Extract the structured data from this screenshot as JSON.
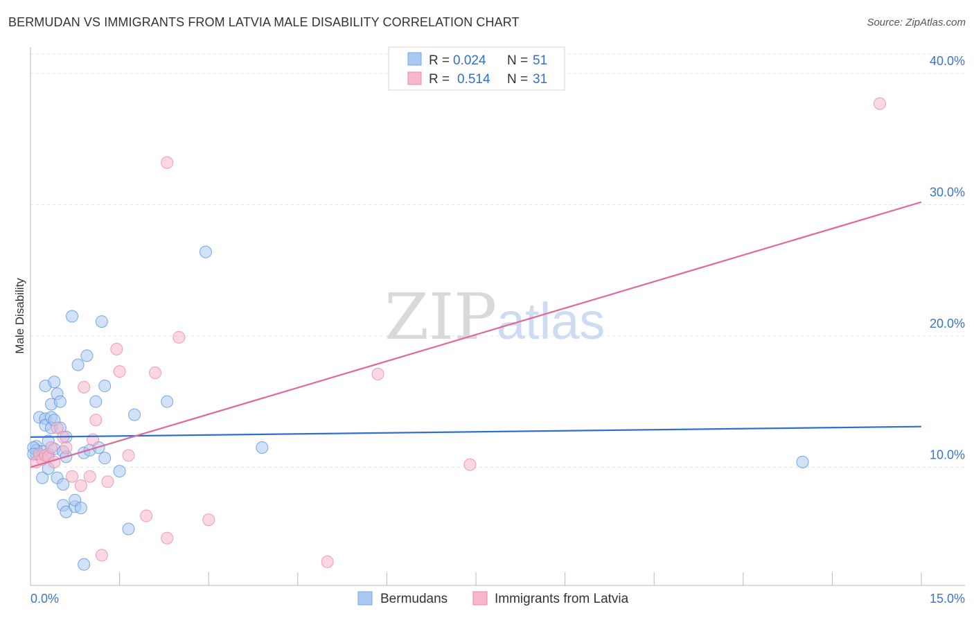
{
  "header": {
    "title": "BERMUDAN VS IMMIGRANTS FROM LATVIA MALE DISABILITY CORRELATION CHART",
    "source": "Source: ZipAtlas.com"
  },
  "watermark": {
    "zip": "ZIP",
    "atlas": "atlas"
  },
  "legend_box": {
    "rows": [
      {
        "r_label": "R =",
        "r_value": "0.024",
        "n_label": "N =",
        "n_value": "51",
        "color": "#a9c8f2"
      },
      {
        "r_label": "R =",
        "r_value": "0.514",
        "n_label": "N =",
        "n_value": "31",
        "color": "#f6b6cb"
      }
    ]
  },
  "bottom_legend": {
    "items": [
      {
        "label": "Bermudans",
        "color": "#a9c8f2"
      },
      {
        "label": "Immigrants from Latvia",
        "color": "#f6b6cb"
      }
    ]
  },
  "chart_data": {
    "type": "scatter",
    "title": "BERMUDAN VS IMMIGRANTS FROM LATVIA MALE DISABILITY CORRELATION CHART",
    "xlabel": "",
    "ylabel": "Male Disability",
    "xlim": [
      0,
      15
    ],
    "ylim": [
      1.0,
      42.0
    ],
    "x_tick_labels": [
      "0.0%",
      "15.0%"
    ],
    "y_ticks": [
      10,
      20,
      30,
      40
    ],
    "y_tick_labels": [
      "10.0%",
      "20.0%",
      "30.0%",
      "40.0%"
    ],
    "series": [
      {
        "name": "Bermudans",
        "color": "#5b93e0",
        "fill": "#a9c8f2",
        "line_color": "#2f6fd0",
        "trend": [
          [
            0,
            12.3
          ],
          [
            15,
            13.1
          ]
        ],
        "points": [
          [
            0.1,
            11.6
          ],
          [
            0.1,
            11.3
          ],
          [
            0.1,
            11.0
          ],
          [
            0.15,
            13.8
          ],
          [
            0.2,
            9.2
          ],
          [
            0.2,
            11.2
          ],
          [
            0.25,
            13.7
          ],
          [
            0.25,
            13.2
          ],
          [
            0.25,
            16.2
          ],
          [
            0.3,
            12.0
          ],
          [
            0.3,
            11.0
          ],
          [
            0.3,
            9.9
          ],
          [
            0.35,
            13.8
          ],
          [
            0.35,
            13.0
          ],
          [
            0.35,
            14.8
          ],
          [
            0.4,
            11.4
          ],
          [
            0.4,
            13.6
          ],
          [
            0.4,
            16.5
          ],
          [
            0.45,
            15.6
          ],
          [
            0.45,
            9.2
          ],
          [
            0.5,
            13.0
          ],
          [
            0.5,
            15.0
          ],
          [
            0.55,
            8.7
          ],
          [
            0.55,
            11.2
          ],
          [
            0.55,
            7.1
          ],
          [
            0.6,
            12.3
          ],
          [
            0.6,
            10.8
          ],
          [
            0.6,
            6.6
          ],
          [
            0.7,
            21.5
          ],
          [
            0.75,
            7.0
          ],
          [
            0.75,
            7.5
          ],
          [
            0.8,
            17.8
          ],
          [
            0.85,
            6.9
          ],
          [
            0.9,
            11.1
          ],
          [
            0.95,
            18.5
          ],
          [
            1.0,
            11.3
          ],
          [
            1.1,
            15.0
          ],
          [
            1.15,
            11.5
          ],
          [
            1.2,
            21.1
          ],
          [
            1.25,
            10.7
          ],
          [
            1.25,
            16.2
          ],
          [
            1.5,
            9.7
          ],
          [
            1.65,
            5.3
          ],
          [
            1.75,
            14.0
          ],
          [
            2.3,
            15.0
          ],
          [
            2.95,
            26.4
          ],
          [
            3.9,
            11.5
          ],
          [
            13.0,
            10.4
          ],
          [
            0.9,
            2.6
          ],
          [
            0.05,
            11.5
          ],
          [
            0.05,
            11.0
          ]
        ]
      },
      {
        "name": "Immigrants from Latvia",
        "color": "#e88aa8",
        "fill": "#f6b6cb",
        "line_color": "#e0679a",
        "trend": [
          [
            0,
            10.0
          ],
          [
            15,
            30.2
          ]
        ],
        "points": [
          [
            0.1,
            10.4
          ],
          [
            0.15,
            11.0
          ],
          [
            0.2,
            10.6
          ],
          [
            0.25,
            10.9
          ],
          [
            0.3,
            10.8
          ],
          [
            0.35,
            11.5
          ],
          [
            0.4,
            10.4
          ],
          [
            0.45,
            13.0
          ],
          [
            0.55,
            12.3
          ],
          [
            0.6,
            11.5
          ],
          [
            0.7,
            9.3
          ],
          [
            0.85,
            8.6
          ],
          [
            0.9,
            16.1
          ],
          [
            1.0,
            9.3
          ],
          [
            1.05,
            12.1
          ],
          [
            1.1,
            13.6
          ],
          [
            1.2,
            3.3
          ],
          [
            1.3,
            8.9
          ],
          [
            1.45,
            19.0
          ],
          [
            1.5,
            17.3
          ],
          [
            1.65,
            10.9
          ],
          [
            1.95,
            6.3
          ],
          [
            2.1,
            17.2
          ],
          [
            2.3,
            4.6
          ],
          [
            2.3,
            33.2
          ],
          [
            2.5,
            19.9
          ],
          [
            3.0,
            6.0
          ],
          [
            5.0,
            2.8
          ],
          [
            5.85,
            17.1
          ],
          [
            7.4,
            10.2
          ],
          [
            14.3,
            37.7
          ]
        ]
      }
    ]
  }
}
